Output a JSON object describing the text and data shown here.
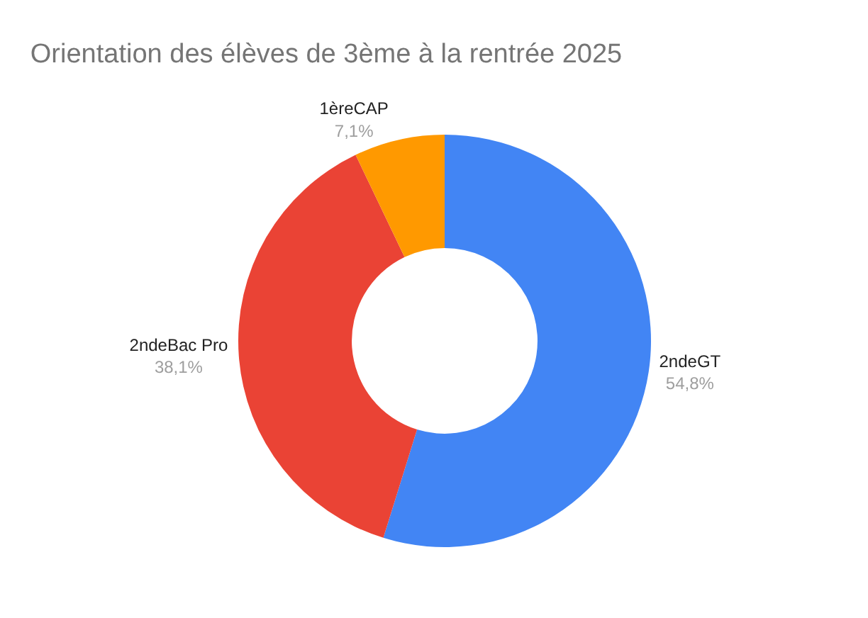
{
  "chart_data": {
    "type": "donut",
    "title": "Orientation des élèves de 3ème à la rentrée 2025",
    "categories": [
      "2ndeGT",
      "2ndeBac Pro",
      "1èreCAP"
    ],
    "values": [
      54.8,
      38.1,
      7.1
    ],
    "value_labels": [
      "54,8%",
      "38,1%",
      "7,1%"
    ],
    "colors": [
      "#4285f4",
      "#ea4335",
      "#ff9900"
    ],
    "legend": false
  }
}
